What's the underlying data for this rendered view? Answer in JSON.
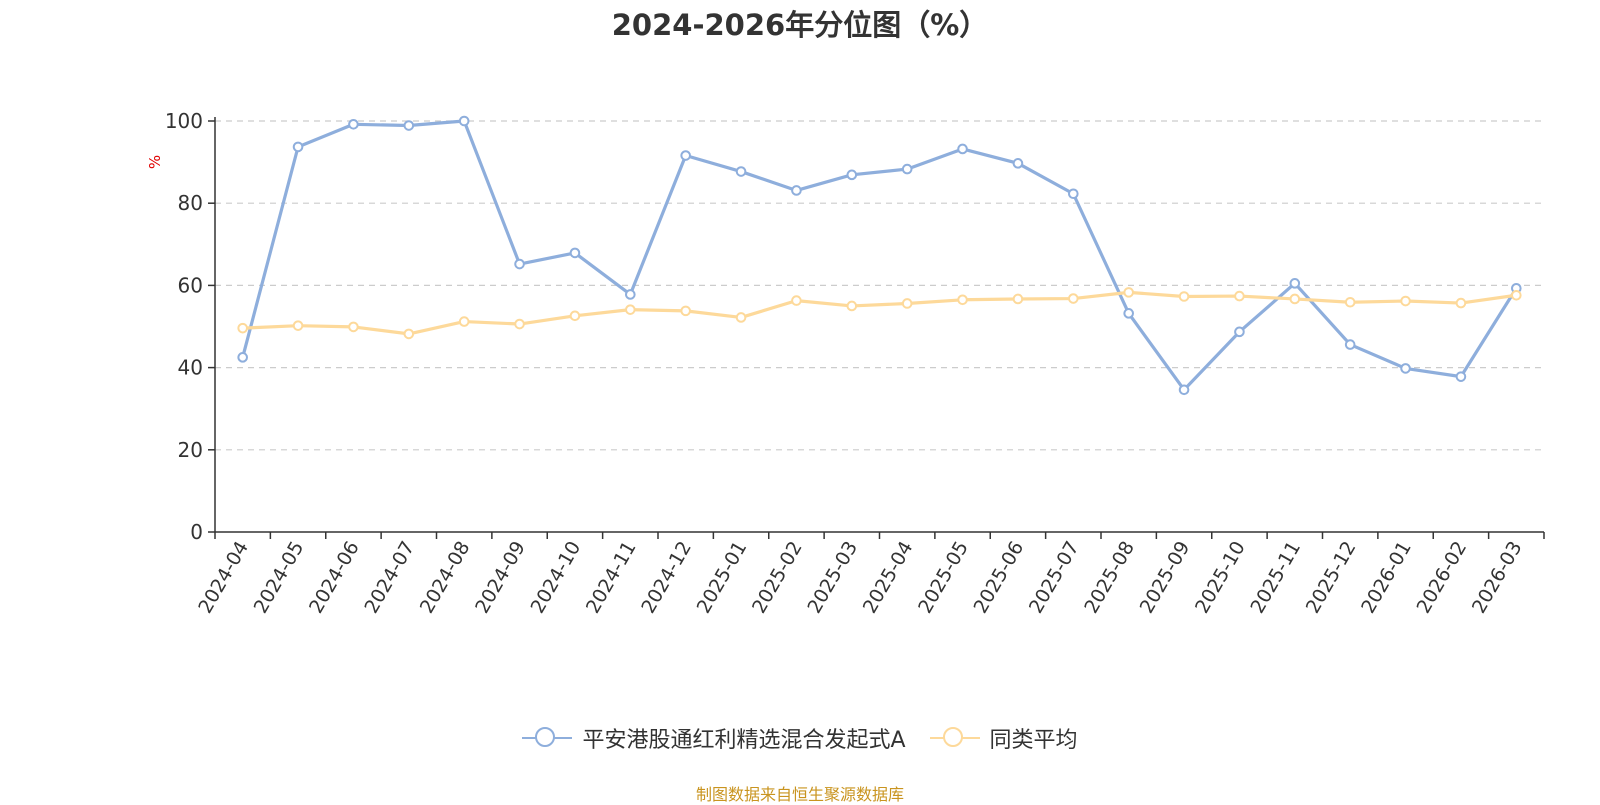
{
  "chart_data": {
    "type": "line",
    "title": "2024-2026年分位图（%）",
    "ylabel": "%",
    "ylim": [
      0,
      100
    ],
    "yticks": [
      0,
      20,
      40,
      60,
      80,
      100
    ],
    "grid": true,
    "legend_position": "bottom",
    "categories": [
      "2024-04",
      "2024-05",
      "2024-06",
      "2024-07",
      "2024-08",
      "2024-09",
      "2024-10",
      "2024-11",
      "2024-12",
      "2025-01",
      "2025-02",
      "2025-03",
      "2025-04",
      "2025-05",
      "2025-06",
      "2025-07",
      "2025-08",
      "2025-09",
      "2025-10",
      "2025-11",
      "2025-12",
      "2026-01",
      "2026-02",
      "2026-03"
    ],
    "series": [
      {
        "name": "平安港股通红利精选混合发起式A",
        "color": "#8eaedc",
        "values": [
          42.5,
          93.7,
          99.2,
          98.9,
          100.0,
          65.2,
          67.9,
          57.8,
          91.6,
          87.7,
          83.1,
          86.9,
          88.3,
          93.2,
          89.7,
          82.3,
          53.2,
          34.6,
          48.7,
          60.5,
          45.6,
          39.8,
          37.8,
          59.3
        ]
      },
      {
        "name": "同类平均",
        "color": "#fdd99a",
        "values": [
          49.6,
          50.2,
          49.9,
          48.2,
          51.2,
          50.6,
          52.6,
          54.1,
          53.8,
          52.2,
          56.3,
          55.0,
          55.6,
          56.5,
          56.7,
          56.8,
          58.3,
          57.3,
          57.4,
          56.7,
          55.9,
          56.2,
          55.7,
          57.6
        ]
      }
    ]
  },
  "source_text": "制图数据来自恒生聚源数据库"
}
